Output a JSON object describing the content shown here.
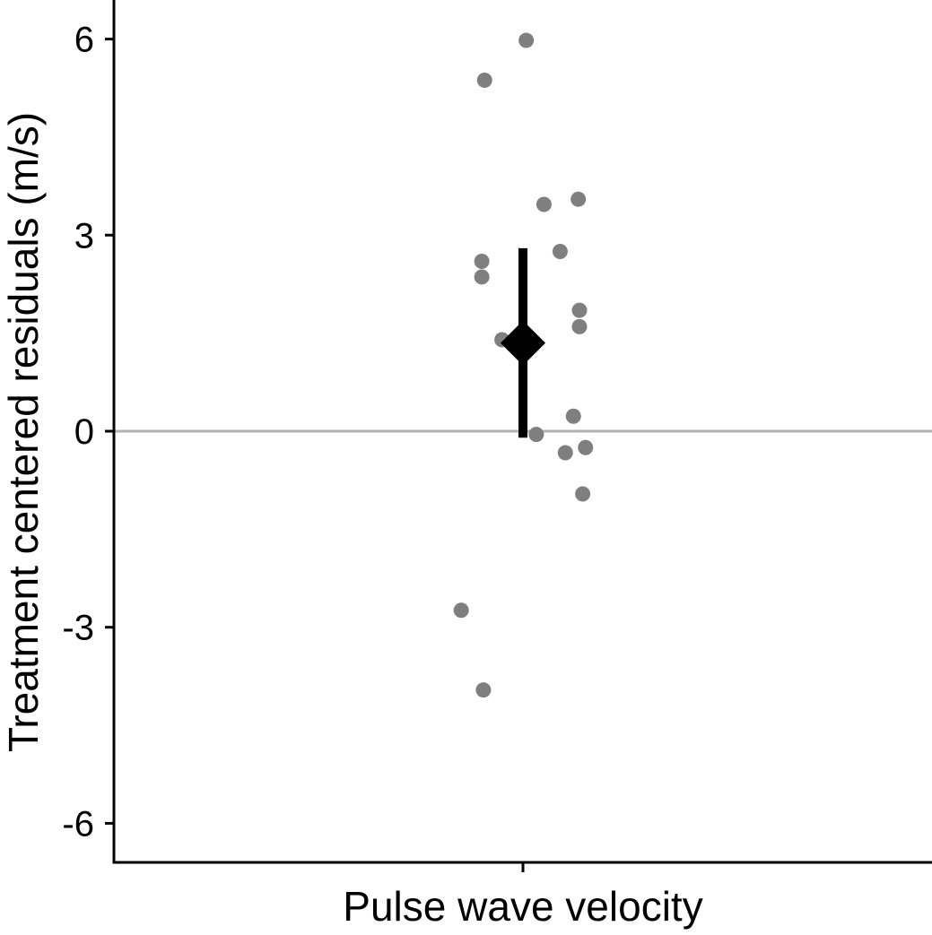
{
  "chart_data": {
    "type": "scatter",
    "title": "",
    "xlabel": "Pulse wave velocity",
    "ylabel": "Treatment centered residuals (m/s)",
    "category": "Pulse wave velocity",
    "ylim": [
      -6.6,
      6.6
    ],
    "yticks": [
      6,
      3,
      0,
      -3,
      -6
    ],
    "ytick_labels": [
      "6",
      "3",
      "0",
      "-3",
      "-6"
    ],
    "reference_line": 0,
    "points": [
      {
        "jitter": 0.008,
        "y": 5.98
      },
      {
        "jitter": -0.095,
        "y": 5.37
      },
      {
        "jitter": 0.137,
        "y": 3.55
      },
      {
        "jitter": 0.052,
        "y": 3.47
      },
      {
        "jitter": 0.092,
        "y": 2.75
      },
      {
        "jitter": -0.102,
        "y": 2.6
      },
      {
        "jitter": -0.102,
        "y": 2.36
      },
      {
        "jitter": 0.14,
        "y": 1.85
      },
      {
        "jitter": 0.14,
        "y": 1.6
      },
      {
        "jitter": -0.052,
        "y": 1.4
      },
      {
        "jitter": 0.125,
        "y": 0.23
      },
      {
        "jitter": 0.033,
        "y": -0.05
      },
      {
        "jitter": 0.155,
        "y": -0.25
      },
      {
        "jitter": 0.105,
        "y": -0.33
      },
      {
        "jitter": 0.148,
        "y": -0.96
      },
      {
        "jitter": -0.153,
        "y": -2.74
      },
      {
        "jitter": -0.098,
        "y": -3.96
      }
    ],
    "summary": {
      "estimate": 1.35,
      "ci_low": -0.1,
      "ci_high": 2.8
    },
    "colors": {
      "points": "#7f7f7f",
      "summary": "#000000",
      "reference_line": "#b3b3b3",
      "axis": "#000000"
    },
    "grid": false
  }
}
